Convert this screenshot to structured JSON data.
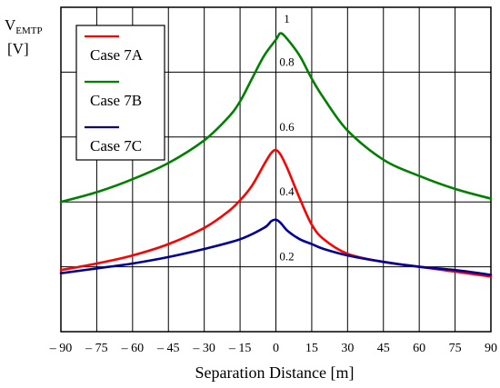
{
  "chart_data": {
    "type": "line",
    "ylabel": "V",
    "ylabel_subscript": "EMTP",
    "ylabel_unit": "[V]",
    "xlabel": "Separation Distance [m]",
    "xlim": [
      -90,
      90
    ],
    "ylim": [
      0,
      1
    ],
    "x_ticks": [
      -90,
      -75,
      -60,
      -45,
      -30,
      -15,
      0,
      15,
      30,
      45,
      60,
      75,
      90
    ],
    "x_tick_labels": [
      "– 90",
      "– 75",
      "– 60",
      "– 45",
      "– 30",
      "– 15",
      "0",
      "15",
      "30",
      "45",
      "60",
      "75",
      "90"
    ],
    "y_ticks": [
      0.2,
      0.4,
      0.6,
      0.8,
      1
    ],
    "y_tick_labels": [
      "0.2",
      "0.4",
      "0.6",
      "0.8",
      "1"
    ],
    "grid": true,
    "legend_position": "top-left",
    "series": [
      {
        "name": "Case 7A",
        "color": "#ff0000",
        "x": [
          -90,
          -75,
          -60,
          -45,
          -30,
          -20,
          -15,
          -10,
          -5,
          -2,
          0,
          2,
          5,
          10,
          15,
          20,
          30,
          45,
          60,
          75,
          90
        ],
        "y": [
          0.19,
          0.21,
          0.235,
          0.27,
          0.32,
          0.37,
          0.405,
          0.45,
          0.515,
          0.55,
          0.56,
          0.545,
          0.5,
          0.41,
          0.33,
          0.285,
          0.24,
          0.215,
          0.2,
          0.185,
          0.17
        ]
      },
      {
        "name": "Case 7B",
        "color": "#008000",
        "x": [
          -90,
          -75,
          -60,
          -45,
          -30,
          -20,
          -15,
          -10,
          -5,
          0,
          2,
          5,
          10,
          15,
          20,
          30,
          45,
          60,
          75,
          90
        ],
        "y": [
          0.4,
          0.43,
          0.47,
          0.52,
          0.59,
          0.66,
          0.71,
          0.78,
          0.85,
          0.9,
          0.92,
          0.9,
          0.85,
          0.78,
          0.72,
          0.62,
          0.53,
          0.48,
          0.44,
          0.41
        ]
      },
      {
        "name": "Case 7C",
        "color": "#000099",
        "x": [
          -90,
          -75,
          -60,
          -45,
          -30,
          -15,
          -5,
          -2,
          0,
          2,
          5,
          10,
          15,
          20,
          30,
          45,
          60,
          75,
          90
        ],
        "y": [
          0.18,
          0.195,
          0.21,
          0.23,
          0.255,
          0.285,
          0.32,
          0.34,
          0.345,
          0.335,
          0.31,
          0.285,
          0.27,
          0.255,
          0.235,
          0.215,
          0.2,
          0.19,
          0.175
        ]
      }
    ]
  }
}
